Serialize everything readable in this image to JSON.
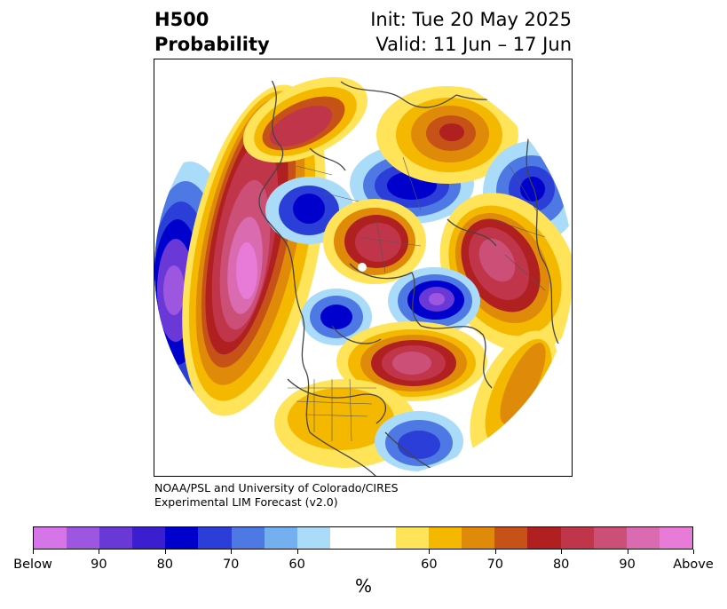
{
  "header": {
    "title_line1": "H500",
    "title_line2": "Probability",
    "init": "Init: Tue 20 May 2025",
    "valid": "Valid: 11 Jun – 17 Jun"
  },
  "credit": {
    "line1": "NOAA/PSL and University of Colorado/CIRES",
    "line2": "Experimental LIM Forecast (v2.0)"
  },
  "colorbar": {
    "units": "%",
    "ticks": [
      "Below",
      "90",
      "80",
      "70",
      "60",
      "60",
      "70",
      "80",
      "90",
      "Above"
    ],
    "colors": [
      "#d675e8",
      "#9c56e0",
      "#6b38d8",
      "#3a1ed0",
      "#0000cc",
      "#2b3fd8",
      "#4e78e4",
      "#74b0f0",
      "#aadcfa",
      "#ffffff",
      "#ffffff",
      "#ffe45a",
      "#f4b800",
      "#e08a0a",
      "#c65218",
      "#b02020",
      "#c0354a",
      "#cc4f78",
      "#da6bb0",
      "#e87ad8"
    ]
  },
  "map": {
    "projection": "north-polar-stereographic",
    "anomalies": [
      {
        "name": "pacific-below",
        "sign": "below",
        "peak": "90"
      },
      {
        "name": "west-coast-above",
        "sign": "above",
        "peak": "Above"
      },
      {
        "name": "alaska-above",
        "sign": "above",
        "peak": "80"
      },
      {
        "name": "siberia-below",
        "sign": "below",
        "peak": "80"
      },
      {
        "name": "east-siberia-above",
        "sign": "above",
        "peak": "80"
      },
      {
        "name": "east-pacific-below",
        "sign": "below",
        "peak": "80"
      },
      {
        "name": "pole-above",
        "sign": "above",
        "peak": "80"
      },
      {
        "name": "scandinavia-above",
        "sign": "above",
        "peak": "80"
      },
      {
        "name": "canada-below",
        "sign": "below",
        "peak": "90"
      },
      {
        "name": "north-atlantic-above",
        "sign": "above",
        "peak": "90"
      },
      {
        "name": "caspian-below",
        "sign": "below",
        "peak": "80"
      },
      {
        "name": "east-asia-below",
        "sign": "below",
        "peak": "80"
      },
      {
        "name": "us-above",
        "sign": "above",
        "peak": "60"
      },
      {
        "name": "north-africa-above",
        "sign": "above",
        "peak": "70"
      }
    ]
  }
}
